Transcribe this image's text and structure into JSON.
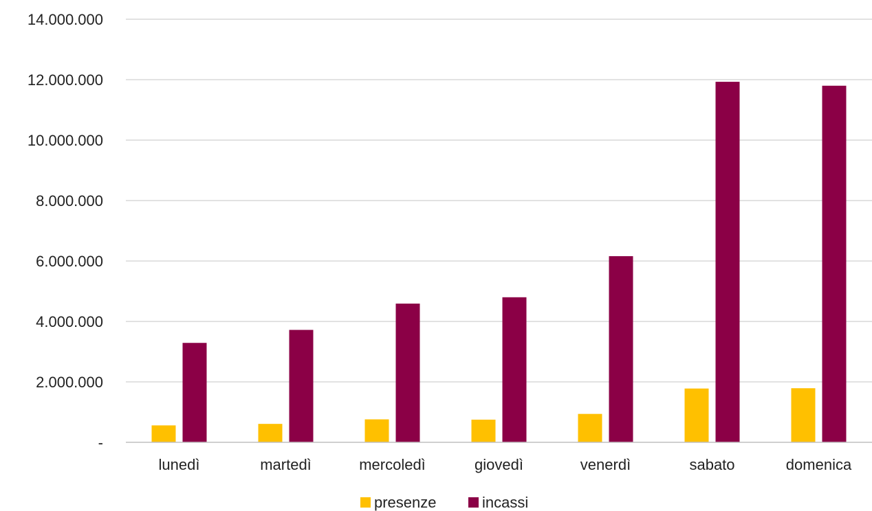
{
  "chart_data": {
    "type": "bar",
    "categories": [
      "lunedì",
      "martedì",
      "mercoledì",
      "giovedì",
      "venerdì",
      "sabato",
      "domenica"
    ],
    "series": [
      {
        "name": "presenze",
        "color": "#FFC000",
        "values": [
          560000,
          610000,
          760000,
          750000,
          940000,
          1780000,
          1790000
        ]
      },
      {
        "name": "incassi",
        "color": "#8B0046",
        "values": [
          3290000,
          3720000,
          4590000,
          4800000,
          6160000,
          11930000,
          11800000
        ]
      }
    ],
    "ylim": [
      0,
      14000000
    ],
    "yticks": [
      0,
      2000000,
      4000000,
      6000000,
      8000000,
      10000000,
      12000000,
      14000000
    ],
    "ytick_labels": [
      "-",
      "2.000.000",
      "4.000.000",
      "6.000.000",
      "8.000.000",
      "10.000.000",
      "12.000.000",
      "14.000.000"
    ],
    "title": "",
    "xlabel": "",
    "ylabel": "",
    "grid": true,
    "legend": "bottom"
  }
}
